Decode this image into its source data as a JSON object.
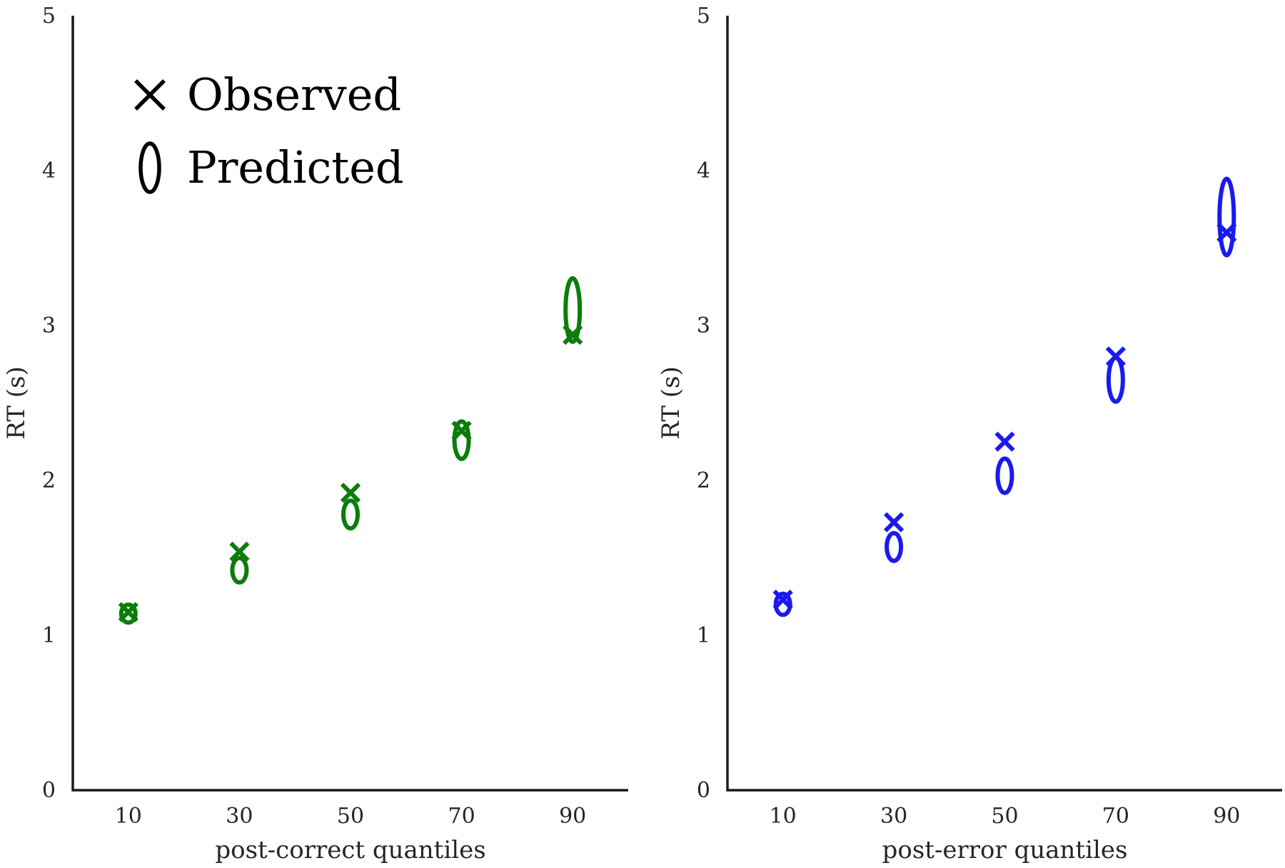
{
  "chart_data": [
    {
      "type": "scatter",
      "xlabel": "post-correct quantiles",
      "ylabel": "RT (s)",
      "x_ticks": [
        "10",
        "30",
        "50",
        "70",
        "90"
      ],
      "y_ticks": [
        "0",
        "1",
        "2",
        "3",
        "4",
        "5"
      ],
      "xlim": [
        0,
        100
      ],
      "ylim": [
        0,
        5
      ],
      "grid": false,
      "color": "#0a7d0a",
      "series": [
        {
          "marker": "x",
          "x": [
            10,
            30,
            50,
            70,
            90
          ],
          "values": [
            1.15,
            1.54,
            1.92,
            2.32,
            2.94
          ]
        },
        {
          "marker": "ellipse",
          "x": [
            10,
            30,
            50,
            70,
            90
          ],
          "values": [
            1.14,
            1.42,
            1.78,
            2.26,
            3.1
          ],
          "spread": [
            0.02,
            0.04,
            0.05,
            0.08,
            0.16
          ]
        }
      ],
      "legend": {
        "placement": "top-left",
        "entries": [
          {
            "marker": "x",
            "label": "Observed"
          },
          {
            "marker": "ellipse",
            "label": "Predicted"
          }
        ],
        "color": "#000000"
      }
    },
    {
      "type": "scatter",
      "xlabel": "post-error quantiles",
      "ylabel": "RT (s)",
      "x_ticks": [
        "10",
        "30",
        "50",
        "70",
        "90"
      ],
      "y_ticks": [
        "0",
        "1",
        "2",
        "3",
        "4",
        "5"
      ],
      "xlim": [
        0,
        100
      ],
      "ylim": [
        0,
        5
      ],
      "grid": false,
      "color": "#1a1af0",
      "series": [
        {
          "marker": "x",
          "x": [
            10,
            30,
            50,
            70,
            90
          ],
          "values": [
            1.23,
            1.73,
            2.25,
            2.8,
            3.6
          ]
        },
        {
          "marker": "ellipse",
          "x": [
            10,
            30,
            50,
            70,
            90
          ],
          "values": [
            1.2,
            1.57,
            2.03,
            2.65,
            3.7
          ],
          "spread": [
            0.03,
            0.05,
            0.07,
            0.1,
            0.2
          ]
        }
      ]
    }
  ]
}
